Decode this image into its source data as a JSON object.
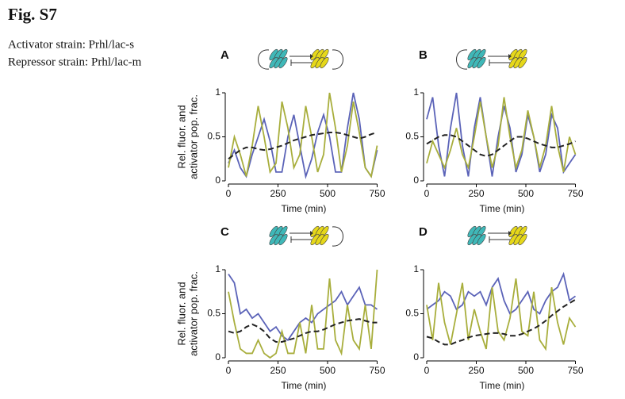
{
  "figure": {
    "title": "Fig. S7",
    "lines": [
      "Activator strain: Prhl/lac-s",
      "Repressor strain: Prhl/lac-m"
    ]
  },
  "chart_data": [
    {
      "type": "line",
      "panel": "A",
      "ylabel": [
        "Rel. fluor. and",
        "activator pop. frac."
      ],
      "xlabel": "Time (min)",
      "x": [
        0,
        30,
        60,
        90,
        120,
        150,
        180,
        210,
        240,
        270,
        300,
        330,
        360,
        390,
        420,
        450,
        480,
        510,
        540,
        570,
        600,
        630,
        660,
        690,
        720,
        750
      ],
      "xlim": [
        0,
        760
      ],
      "xticks": [
        0,
        250,
        500,
        750
      ],
      "ylim": [
        0,
        1
      ],
      "yticks": [
        0,
        0.5,
        1
      ],
      "series": [
        {
          "color": "#5b63b8",
          "values": [
            0.2,
            0.35,
            0.15,
            0.05,
            0.3,
            0.5,
            0.7,
            0.45,
            0.1,
            0.1,
            0.5,
            0.75,
            0.4,
            0.05,
            0.25,
            0.55,
            0.75,
            0.5,
            0.1,
            0.1,
            0.6,
            1.0,
            0.7,
            0.15,
            0.05,
            0.35
          ]
        },
        {
          "color": "#a8ae3c",
          "values": [
            0.15,
            0.5,
            0.3,
            0.05,
            0.4,
            0.85,
            0.5,
            0.1,
            0.2,
            0.9,
            0.6,
            0.15,
            0.3,
            0.85,
            0.5,
            0.1,
            0.3,
            1.0,
            0.6,
            0.1,
            0.4,
            0.9,
            0.55,
            0.15,
            0.05,
            0.4
          ]
        },
        {
          "color": "#222222",
          "dashed": true,
          "values": [
            0.25,
            0.3,
            0.35,
            0.38,
            0.38,
            0.36,
            0.35,
            0.36,
            0.38,
            0.4,
            0.43,
            0.46,
            0.48,
            0.5,
            0.52,
            0.53,
            0.54,
            0.55,
            0.55,
            0.54,
            0.52,
            0.5,
            0.48,
            0.5,
            0.53,
            0.55
          ]
        }
      ]
    },
    {
      "type": "line",
      "panel": "B",
      "xlabel": "Time (min)",
      "x": [
        0,
        30,
        60,
        90,
        120,
        150,
        180,
        210,
        240,
        270,
        300,
        330,
        360,
        390,
        420,
        450,
        480,
        510,
        540,
        570,
        600,
        630,
        660,
        690,
        720,
        750
      ],
      "xlim": [
        0,
        760
      ],
      "xticks": [
        0,
        250,
        500,
        750
      ],
      "ylim": [
        0,
        1
      ],
      "yticks": [
        0,
        0.5,
        1
      ],
      "series": [
        {
          "color": "#5b63b8",
          "values": [
            0.7,
            0.95,
            0.4,
            0.05,
            0.6,
            1.0,
            0.4,
            0.05,
            0.6,
            0.95,
            0.5,
            0.05,
            0.5,
            0.85,
            0.6,
            0.1,
            0.3,
            0.75,
            0.5,
            0.1,
            0.3,
            0.75,
            0.6,
            0.1,
            0.2,
            0.3
          ]
        },
        {
          "color": "#a8ae3c",
          "values": [
            0.2,
            0.45,
            0.3,
            0.15,
            0.35,
            0.6,
            0.3,
            0.15,
            0.5,
            0.9,
            0.5,
            0.15,
            0.4,
            0.95,
            0.5,
            0.15,
            0.35,
            0.8,
            0.5,
            0.15,
            0.4,
            0.85,
            0.4,
            0.1,
            0.5,
            0.3
          ]
        },
        {
          "color": "#222222",
          "dashed": true,
          "values": [
            0.42,
            0.46,
            0.5,
            0.52,
            0.52,
            0.5,
            0.45,
            0.4,
            0.35,
            0.3,
            0.28,
            0.3,
            0.35,
            0.4,
            0.45,
            0.5,
            0.5,
            0.48,
            0.45,
            0.42,
            0.4,
            0.38,
            0.38,
            0.4,
            0.42,
            0.45
          ]
        }
      ]
    },
    {
      "type": "line",
      "panel": "C",
      "ylabel": [
        "Rel. fluor. and",
        "activator pop. frac."
      ],
      "xlabel": "Time (min)",
      "x": [
        0,
        30,
        60,
        90,
        120,
        150,
        180,
        210,
        240,
        270,
        300,
        330,
        360,
        390,
        420,
        450,
        480,
        510,
        540,
        570,
        600,
        630,
        660,
        690,
        720,
        750
      ],
      "xlim": [
        0,
        760
      ],
      "xticks": [
        0,
        250,
        500,
        750
      ],
      "ylim": [
        0,
        1
      ],
      "yticks": [
        0,
        0.5,
        1
      ],
      "series": [
        {
          "color": "#5b63b8",
          "values": [
            0.95,
            0.85,
            0.5,
            0.55,
            0.45,
            0.5,
            0.4,
            0.3,
            0.35,
            0.25,
            0.2,
            0.3,
            0.4,
            0.45,
            0.4,
            0.5,
            0.55,
            0.6,
            0.65,
            0.75,
            0.6,
            0.7,
            0.8,
            0.6,
            0.6,
            0.55
          ]
        },
        {
          "color": "#a8ae3c",
          "values": [
            0.75,
            0.4,
            0.1,
            0.05,
            0.05,
            0.2,
            0.05,
            0.0,
            0.05,
            0.3,
            0.05,
            0.05,
            0.4,
            0.05,
            0.6,
            0.1,
            0.1,
            0.9,
            0.2,
            0.05,
            0.6,
            0.2,
            0.1,
            0.6,
            0.1,
            1.0
          ]
        },
        {
          "color": "#222222",
          "dashed": true,
          "values": [
            0.3,
            0.28,
            0.3,
            0.35,
            0.38,
            0.35,
            0.3,
            0.22,
            0.18,
            0.18,
            0.2,
            0.22,
            0.25,
            0.28,
            0.3,
            0.3,
            0.32,
            0.35,
            0.38,
            0.4,
            0.42,
            0.43,
            0.44,
            0.42,
            0.4,
            0.4
          ]
        }
      ]
    },
    {
      "type": "line",
      "panel": "D",
      "xlabel": "Time (min)",
      "x": [
        0,
        30,
        60,
        90,
        120,
        150,
        180,
        210,
        240,
        270,
        300,
        330,
        360,
        390,
        420,
        450,
        480,
        510,
        540,
        570,
        600,
        630,
        660,
        690,
        720,
        750
      ],
      "xlim": [
        0,
        760
      ],
      "xticks": [
        0,
        250,
        500,
        750
      ],
      "ylim": [
        0,
        1
      ],
      "yticks": [
        0,
        0.5,
        1
      ],
      "series": [
        {
          "color": "#5b63b8",
          "values": [
            0.55,
            0.6,
            0.65,
            0.75,
            0.7,
            0.55,
            0.6,
            0.75,
            0.7,
            0.75,
            0.6,
            0.8,
            0.9,
            0.65,
            0.5,
            0.55,
            0.65,
            0.75,
            0.55,
            0.5,
            0.65,
            0.75,
            0.8,
            0.95,
            0.65,
            0.7
          ]
        },
        {
          "color": "#a8ae3c",
          "values": [
            0.6,
            0.2,
            0.85,
            0.4,
            0.15,
            0.5,
            0.85,
            0.2,
            0.55,
            0.3,
            0.1,
            0.8,
            0.3,
            0.2,
            0.45,
            0.9,
            0.3,
            0.25,
            0.75,
            0.2,
            0.1,
            0.8,
            0.4,
            0.15,
            0.45,
            0.35
          ]
        },
        {
          "color": "#222222",
          "dashed": true,
          "values": [
            0.24,
            0.22,
            0.18,
            0.15,
            0.15,
            0.18,
            0.2,
            0.23,
            0.25,
            0.26,
            0.27,
            0.28,
            0.28,
            0.27,
            0.25,
            0.25,
            0.27,
            0.3,
            0.33,
            0.37,
            0.42,
            0.48,
            0.53,
            0.58,
            0.62,
            0.66
          ]
        }
      ]
    }
  ]
}
